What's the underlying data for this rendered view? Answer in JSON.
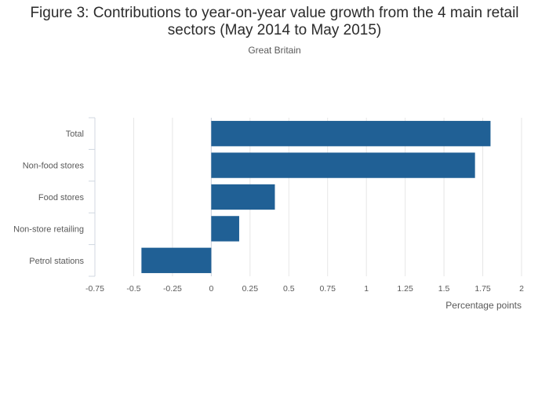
{
  "chart_data": {
    "type": "bar",
    "orientation": "horizontal",
    "title": "Figure 3: Contributions to year-on-year value growth from the 4 main retail sectors (May 2014 to May 2015)",
    "subtitle": "Great Britain",
    "xlabel": "Percentage points",
    "ylabel": "",
    "categories": [
      "Total",
      "Non-food stores",
      "Food stores",
      "Non-store retailing",
      "Petrol stations"
    ],
    "values": [
      1.8,
      1.7,
      0.41,
      0.18,
      -0.45
    ],
    "xlim": [
      -0.75,
      2
    ],
    "xticks": [
      "-0.75",
      "-0.5",
      "-0.25",
      "0",
      "0.25",
      "0.5",
      "0.75",
      "1",
      "1.25",
      "1.5",
      "1.75",
      "2"
    ],
    "grid": true,
    "legend": "none",
    "colors": {
      "bar": "#206095",
      "grid": "#e6e6e6",
      "axis": "#d0d7e0"
    }
  }
}
